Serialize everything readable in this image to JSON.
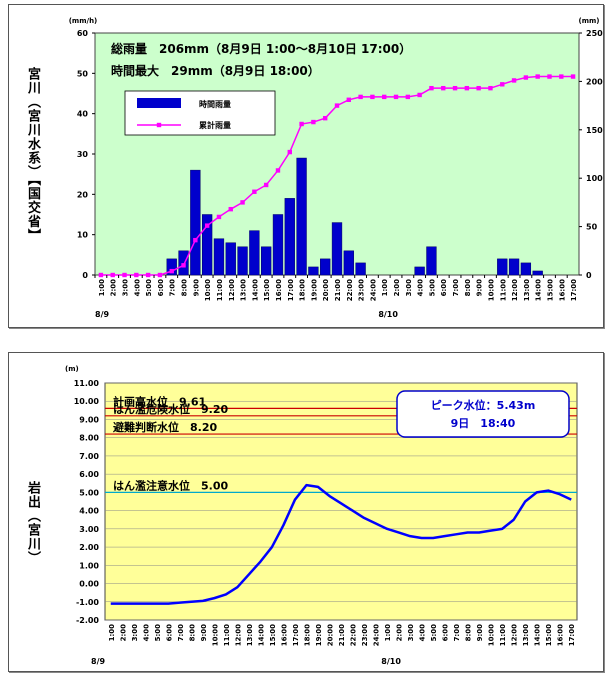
{
  "chart_data": [
    {
      "type": "bar+line",
      "station_label": "宮川（宮川水系）【国交省】",
      "y_unit_left": "(mm/h)",
      "y_unit_right": "(mm)",
      "ylim_left": [
        0,
        60
      ],
      "ylim_right": [
        0,
        250
      ],
      "yticks_left": [
        "0",
        "10",
        "20",
        "30",
        "40",
        "50",
        "60"
      ],
      "yticks_right": [
        "0",
        "50",
        "100",
        "150",
        "200",
        "250"
      ],
      "annotations": {
        "total": "総雨量　206mm（8月9日 1:00〜8月10日 17:00）",
        "max": "時間最大　29mm（8月9日 18:00）"
      },
      "legend": [
        "時間雨量",
        "累計雨量"
      ],
      "date_labels": [
        "8/9",
        "8/10"
      ],
      "categories": [
        "1:00",
        "2:00",
        "3:00",
        "4:00",
        "5:00",
        "6:00",
        "7:00",
        "8:00",
        "9:00",
        "10:00",
        "11:00",
        "12:00",
        "13:00",
        "14:00",
        "15:00",
        "16:00",
        "17:00",
        "18:00",
        "19:00",
        "20:00",
        "21:00",
        "22:00",
        "23:00",
        "24:00",
        "1:00",
        "2:00",
        "3:00",
        "4:00",
        "5:00",
        "6:00",
        "7:00",
        "8:00",
        "9:00",
        "10:00",
        "11:00",
        "12:00",
        "13:00",
        "14:00",
        "15:00",
        "16:00",
        "17:00"
      ],
      "series": [
        {
          "name": "時間雨量",
          "type": "bar",
          "axis": "left",
          "color": "#0000cc",
          "values": [
            0,
            0,
            0,
            0,
            0,
            0,
            4,
            6,
            26,
            15,
            9,
            8,
            7,
            11,
            7,
            15,
            19,
            29,
            2,
            4,
            13,
            6,
            3,
            0,
            0,
            0,
            0,
            2,
            7,
            0,
            0,
            0,
            0,
            0,
            4,
            4,
            3,
            1,
            0,
            0,
            0
          ]
        },
        {
          "name": "累計雨量",
          "type": "line",
          "axis": "right",
          "color": "#ff00ff",
          "values": [
            0,
            0,
            0,
            0,
            0,
            0,
            4,
            10,
            36,
            51,
            60,
            68,
            75,
            86,
            93,
            108,
            127,
            156,
            158,
            162,
            175,
            181,
            184,
            184,
            184,
            184,
            184,
            186,
            193,
            193,
            193,
            193,
            193,
            193,
            197,
            201,
            204,
            205,
            205,
            205,
            205
          ]
        }
      ]
    },
    {
      "type": "line",
      "station_label": "岩出（宮川）",
      "y_unit": "(m)",
      "ylim": [
        -2,
        11
      ],
      "yticks": [
        "-2.00",
        "-1.00",
        "0.00",
        "1.00",
        "2.00",
        "3.00",
        "4.00",
        "5.00",
        "6.00",
        "7.00",
        "8.00",
        "9.00",
        "10.00",
        "11.00"
      ],
      "date_labels": [
        "8/9",
        "8/10"
      ],
      "peak_box": [
        "ピーク水位：5.43m",
        "9日　18:40"
      ],
      "levels": [
        {
          "label": "計画高水位　9.61",
          "value": 9.61,
          "color": "#cc0000"
        },
        {
          "label": "はん濫危険水位　9.20",
          "value": 9.2,
          "color": "#cc0000"
        },
        {
          "label": "避難判断水位　8.20",
          "value": 8.2,
          "color": "#cc0000"
        },
        {
          "label": "はん濫注意水位　5.00",
          "value": 5.0,
          "color": "#00aacc"
        }
      ],
      "categories": [
        "1:00",
        "2:00",
        "3:00",
        "4:00",
        "5:00",
        "6:00",
        "7:00",
        "8:00",
        "9:00",
        "10:00",
        "11:00",
        "12:00",
        "13:00",
        "14:00",
        "15:00",
        "16:00",
        "17:00",
        "18:00",
        "19:00",
        "20:00",
        "21:00",
        "22:00",
        "23:00",
        "24:00",
        "1:00",
        "2:00",
        "3:00",
        "4:00",
        "5:00",
        "6:00",
        "7:00",
        "8:00",
        "9:00",
        "10:00",
        "11:00",
        "12:00",
        "13:00",
        "14:00",
        "15:00",
        "16:00",
        "17:00"
      ],
      "series": [
        {
          "name": "水位",
          "color": "#0000ff",
          "values": [
            -1.1,
            -1.1,
            -1.1,
            -1.1,
            -1.1,
            -1.1,
            -1.05,
            -1.0,
            -0.95,
            -0.8,
            -0.6,
            -0.2,
            0.5,
            1.2,
            2.0,
            3.2,
            4.6,
            5.4,
            5.3,
            4.8,
            4.4,
            4.0,
            3.6,
            3.3,
            3.0,
            2.8,
            2.6,
            2.5,
            2.5,
            2.6,
            2.7,
            2.8,
            2.8,
            2.9,
            3.0,
            3.5,
            4.5,
            5.0,
            5.1,
            4.9,
            4.6
          ]
        }
      ]
    }
  ]
}
